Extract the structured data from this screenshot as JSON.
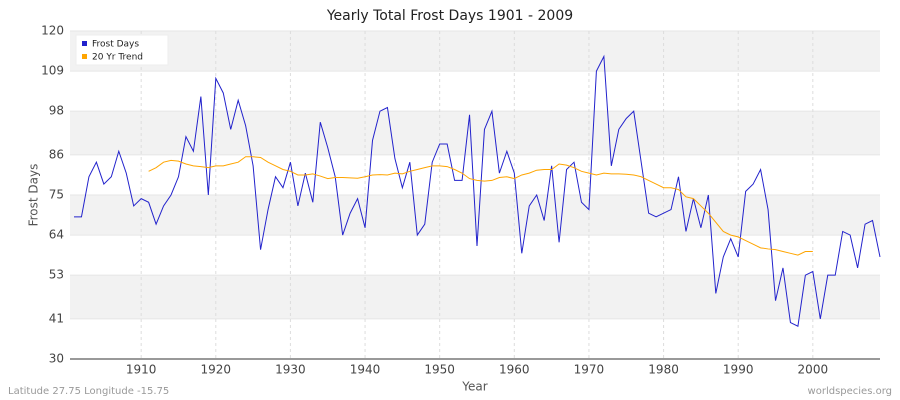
{
  "chart_data": {
    "type": "line",
    "title": "Yearly Total Frost Days 1901 - 2009",
    "x_label": "Year",
    "y_label": "Frost Days",
    "footer_left": "Latitude 27.75 Longitude -15.75",
    "footer_right": "worldspecies.org",
    "x": [
      1901,
      1902,
      1903,
      1904,
      1905,
      1906,
      1907,
      1908,
      1909,
      1910,
      1911,
      1912,
      1913,
      1914,
      1915,
      1916,
      1917,
      1918,
      1919,
      1920,
      1921,
      1922,
      1923,
      1924,
      1925,
      1926,
      1927,
      1928,
      1929,
      1930,
      1931,
      1932,
      1933,
      1934,
      1935,
      1936,
      1937,
      1938,
      1939,
      1940,
      1941,
      1942,
      1943,
      1944,
      1945,
      1946,
      1947,
      1948,
      1949,
      1950,
      1951,
      1952,
      1953,
      1954,
      1955,
      1956,
      1957,
      1958,
      1959,
      1960,
      1961,
      1962,
      1963,
      1964,
      1965,
      1966,
      1967,
      1968,
      1969,
      1970,
      1971,
      1972,
      1973,
      1974,
      1975,
      1976,
      1977,
      1978,
      1979,
      1980,
      1981,
      1982,
      1983,
      1984,
      1985,
      1986,
      1987,
      1988,
      1989,
      1990,
      1991,
      1992,
      1993,
      1994,
      1995,
      1996,
      1997,
      1998,
      1999,
      2000,
      2001,
      2002,
      2003,
      2004,
      2005,
      2006,
      2007,
      2008,
      2009
    ],
    "series": [
      {
        "name": "Frost Days",
        "color": "#2222cc",
        "values": [
          69,
          69,
          80,
          84,
          78,
          80,
          87,
          81,
          72,
          74,
          73,
          67,
          72,
          75,
          80,
          91,
          87,
          102,
          75,
          107,
          103,
          93,
          101,
          94,
          83,
          60,
          71,
          80,
          77,
          84,
          72,
          81,
          73,
          95,
          88,
          80,
          64,
          70,
          74,
          66,
          90,
          98,
          99,
          85,
          77,
          84,
          64,
          67,
          84,
          89,
          89,
          79,
          79,
          97,
          61,
          93,
          98,
          81,
          87,
          81,
          59,
          72,
          75,
          68,
          83,
          62,
          82,
          84,
          73,
          71,
          109,
          113,
          83,
          93,
          96,
          98,
          84,
          70,
          69,
          70,
          71,
          80,
          65,
          74,
          66,
          75,
          48,
          58,
          63,
          58,
          76,
          78,
          82,
          71,
          46,
          55,
          40,
          39,
          53,
          54,
          41,
          53,
          53,
          65,
          64,
          55,
          67,
          68,
          58
        ]
      },
      {
        "name": "20 Yr Trend",
        "color": "#ffa500",
        "values": [
          null,
          null,
          null,
          null,
          null,
          null,
          null,
          null,
          null,
          null,
          81.5,
          82.5,
          84,
          84.5,
          84.3,
          83.5,
          83,
          82.8,
          82.5,
          83,
          83,
          83.5,
          84,
          85.5,
          85.5,
          85.3,
          84,
          83,
          82,
          81.5,
          80.5,
          80.5,
          80.8,
          80.2,
          79.5,
          79.8,
          79.8,
          79.7,
          79.6,
          80,
          80.5,
          80.6,
          80.5,
          81,
          80.8,
          81.5,
          82,
          82.5,
          83,
          83,
          82.8,
          82,
          81,
          79.5,
          79,
          78.8,
          79,
          79.8,
          80,
          79.5,
          80.5,
          81,
          81.8,
          82,
          82,
          83.5,
          83.2,
          82.5,
          81.5,
          81,
          80.5,
          81,
          80.8,
          80.8,
          80.7,
          80.5,
          80,
          79,
          78,
          77,
          77,
          76.5,
          74.5,
          74,
          72,
          70,
          67.5,
          65,
          64,
          63.5,
          62.5,
          61.5,
          60.5,
          60.2,
          60,
          59.5,
          59,
          58.5,
          59.5,
          59.5,
          null,
          null,
          null,
          null,
          null,
          null,
          null,
          null,
          null
        ]
      }
    ],
    "xlim": [
      1901,
      2009
    ],
    "xticks": [
      1910,
      1920,
      1930,
      1940,
      1950,
      1960,
      1970,
      1980,
      1990,
      2000
    ],
    "ylim": [
      30,
      120
    ],
    "yticks": [
      30,
      41,
      53,
      64,
      75,
      86,
      98,
      109,
      120
    ],
    "grid": true,
    "legend": "top-left"
  }
}
